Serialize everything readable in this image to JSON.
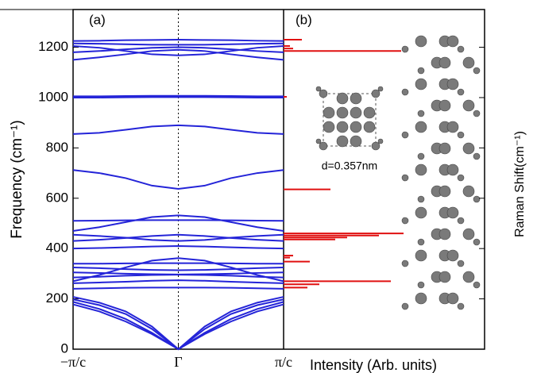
{
  "chart_data": [
    {
      "type": "line",
      "label": "(a)",
      "ylabel": "Frequency (cm⁻¹)",
      "color": "#2424d8",
      "x": [
        -1,
        -0.75,
        -0.5,
        -0.25,
        0,
        0.25,
        0.5,
        0.75,
        1
      ],
      "xlim": [
        -1,
        1
      ],
      "xticks": [
        {
          "value": -1,
          "label": "−π/c"
        },
        {
          "value": 0,
          "label": "Γ"
        },
        {
          "value": 1,
          "label": "π/c"
        }
      ],
      "ylim": [
        0,
        1350
      ],
      "yticks": [
        0,
        200,
        400,
        600,
        800,
        1000,
        1200
      ],
      "series": [
        {
          "values": [
            178,
            150,
            110,
            60,
            0,
            60,
            110,
            150,
            178
          ]
        },
        {
          "values": [
            188,
            160,
            120,
            65,
            0,
            65,
            120,
            160,
            188
          ]
        },
        {
          "values": [
            198,
            175,
            140,
            80,
            0,
            80,
            140,
            175,
            198
          ]
        },
        {
          "values": [
            208,
            185,
            150,
            90,
            0,
            90,
            150,
            185,
            208
          ]
        },
        {
          "values": [
            240,
            242,
            244,
            245,
            245,
            245,
            244,
            242,
            240
          ]
        },
        {
          "values": [
            262,
            265,
            268,
            272,
            274,
            272,
            268,
            265,
            262
          ]
        },
        {
          "values": [
            285,
            288,
            292,
            295,
            296,
            295,
            292,
            288,
            285
          ]
        },
        {
          "values": [
            305,
            303,
            300,
            298,
            297,
            298,
            300,
            303,
            305
          ]
        },
        {
          "values": [
            325,
            322,
            318,
            315,
            314,
            315,
            318,
            322,
            325
          ]
        },
        {
          "values": [
            270,
            295,
            325,
            352,
            362,
            352,
            325,
            295,
            270
          ]
        },
        {
          "values": [
            340,
            340,
            341,
            342,
            342,
            342,
            341,
            340,
            340
          ]
        },
        {
          "values": [
            400,
            402,
            405,
            408,
            410,
            408,
            405,
            402,
            400
          ]
        },
        {
          "values": [
            455,
            450,
            443,
            434,
            430,
            434,
            443,
            450,
            455
          ]
        },
        {
          "values": [
            430,
            435,
            442,
            450,
            455,
            450,
            442,
            435,
            430
          ]
        },
        {
          "values": [
            470,
            485,
            505,
            525,
            532,
            525,
            505,
            485,
            470
          ]
        },
        {
          "values": [
            510,
            511,
            512,
            513,
            513,
            513,
            512,
            511,
            510
          ]
        },
        {
          "values": [
            712,
            700,
            680,
            650,
            637,
            650,
            680,
            700,
            712
          ]
        },
        {
          "values": [
            855,
            860,
            872,
            885,
            890,
            885,
            872,
            860,
            855
          ]
        },
        {
          "values": [
            1000,
            1000,
            1001,
            1002,
            1002,
            1002,
            1001,
            1000,
            1000
          ]
        },
        {
          "values": [
            1005,
            1005,
            1006,
            1007,
            1007,
            1007,
            1006,
            1005,
            1005
          ]
        },
        {
          "values": [
            1150,
            1160,
            1172,
            1185,
            1190,
            1185,
            1172,
            1160,
            1150
          ]
        },
        {
          "values": [
            1205,
            1198,
            1185,
            1172,
            1168,
            1172,
            1185,
            1198,
            1205
          ]
        },
        {
          "values": [
            1215,
            1214,
            1212,
            1210,
            1210,
            1210,
            1212,
            1214,
            1215
          ]
        },
        {
          "values": [
            1225,
            1226,
            1228,
            1229,
            1230,
            1229,
            1228,
            1226,
            1225
          ]
        },
        {
          "values": [
            1180,
            1185,
            1192,
            1198,
            1200,
            1198,
            1192,
            1185,
            1180
          ]
        }
      ]
    },
    {
      "type": "stem",
      "label": "(b)",
      "xlabel": "Intensity (Arb. units)",
      "ylabel": "Raman Shift(cm⁻¹)",
      "annotation": "d=0.357nm",
      "color": "#e01010",
      "xlim": [
        0,
        253
      ],
      "ylim": [
        0,
        1350
      ],
      "yticks": [
        200,
        400,
        600,
        800,
        1000,
        1200
      ],
      "positions": [
        1230,
        1205,
        1195,
        1185,
        1003,
        635,
        460,
        452,
        444,
        436,
        372,
        364,
        348,
        270,
        258,
        245
      ],
      "values": [
        23,
        8,
        12,
        148,
        4,
        59,
        151,
        120,
        80,
        65,
        12,
        8,
        33,
        135,
        45,
        30
      ]
    }
  ]
}
